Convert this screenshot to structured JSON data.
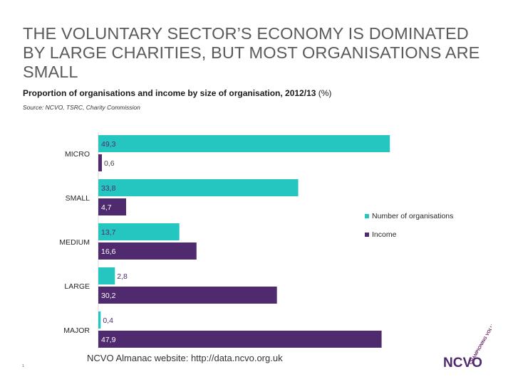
{
  "slide": {
    "title": "THE VOLUNTARY SECTOR’S ECONOMY IS DOMINATED BY LARGE CHARITIES, BUT MOST ORGANISATIONS ARE SMALL",
    "subtitle": "Proportion of organisations and income by size of organisation, 2012/13",
    "subtitle_units": " (%)",
    "source": "Source: NCVO, TSRC, Charity Commission",
    "footer": "NCVO Almanac website: http://data.ncvo.org.uk",
    "page_number": "1",
    "logo_text": "NCVO",
    "logo_tagline": "CHAMPIONING VOLUNTARY ACTION"
  },
  "chart_data": {
    "type": "bar",
    "orientation": "horizontal",
    "categories": [
      "MICRO",
      "SMALL",
      "MEDIUM",
      "LARGE",
      "MAJOR"
    ],
    "series": [
      {
        "name": "Number of organisations",
        "color": "#26c6c0",
        "values": [
          49.3,
          33.8,
          13.7,
          2.8,
          0.4
        ],
        "labels": [
          "49,3",
          "33,8",
          "13,7",
          "2,8",
          "0,4"
        ]
      },
      {
        "name": "Income",
        "color": "#4f2a6e",
        "values": [
          0.6,
          4.7,
          16.6,
          30.2,
          47.9
        ],
        "labels": [
          "0,6",
          "4,7",
          "16,6",
          "30,2",
          "47,9"
        ]
      }
    ],
    "xlim": [
      0,
      50
    ],
    "legend_position": "right",
    "grid": false
  }
}
